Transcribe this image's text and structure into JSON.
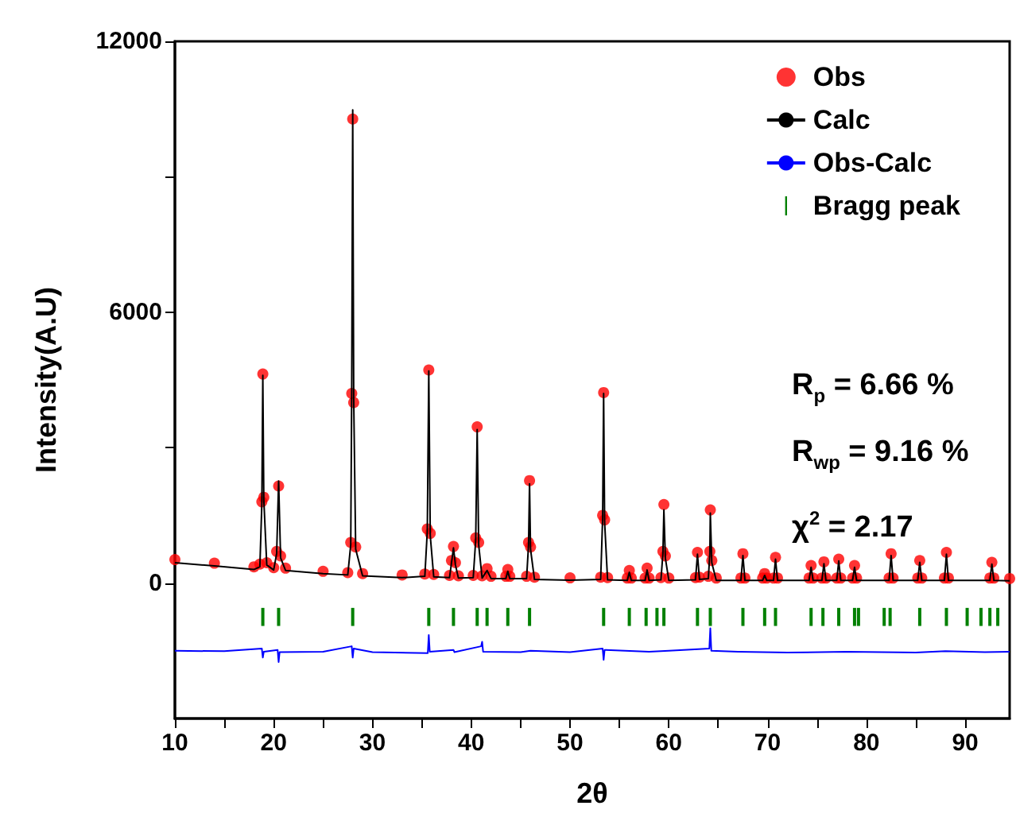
{
  "chart_data": {
    "type": "scatter",
    "xlabel": "2θ",
    "ylabel": "Intensity(A.U)",
    "xlim": [
      10,
      94.5
    ],
    "xticks": [
      10,
      {
        "value": 15,
        "label": null
      },
      20,
      {
        "value": 25,
        "label": null
      },
      30,
      {
        "value": 35,
        "label": null
      },
      40,
      {
        "value": 45,
        "label": null
      },
      50,
      {
        "value": 55,
        "label": null
      },
      60,
      {
        "value": 65,
        "label": null
      },
      70,
      {
        "value": 75,
        "label": null
      },
      80,
      {
        "value": 85,
        "label": null
      },
      90
    ],
    "ylim": [
      -3000,
      12000
    ],
    "yticks": [
      0,
      {
        "value": 3000,
        "label": null
      },
      6000,
      {
        "value": 9000,
        "label": null
      },
      12000
    ],
    "legend": "top right",
    "grid": false,
    "annotations": [
      "R$_{p}$ = 6.66 %",
      "R$_{wp}$ = 9.16 %",
      "χ$^{2}$ =  2.17"
    ],
    "series": [
      {
        "name": "Obs",
        "marker": "circle",
        "color": "#ff0000",
        "x": [
          10,
          14,
          18,
          18.6,
          18.8,
          18.9,
          19.0,
          19.3,
          20.0,
          20.3,
          20.5,
          20.7,
          21.2,
          25,
          27.5,
          27.8,
          27.9,
          28.0,
          28.1,
          28.3,
          29,
          33,
          35.3,
          35.55,
          35.7,
          35.85,
          36.2,
          37.8,
          38.0,
          38.2,
          38.4,
          38.7,
          40.2,
          40.45,
          40.6,
          40.75,
          41.1,
          41.6,
          42.0,
          43.5,
          43.7,
          43.9,
          45.6,
          45.8,
          45.9,
          46.0,
          46.4,
          50,
          53.1,
          53.3,
          53.4,
          53.5,
          53.8,
          55.8,
          56.0,
          56.2,
          57.6,
          57.8,
          58.0,
          59.2,
          59.4,
          59.5,
          59.65,
          60.0,
          62.7,
          62.9,
          63.1,
          64.0,
          64.15,
          64.2,
          64.35,
          64.8,
          67.3,
          67.5,
          67.7,
          69.5,
          69.7,
          69.9,
          70.6,
          70.8,
          71.0,
          74.2,
          74.4,
          74.6,
          75.5,
          75.7,
          75.9,
          77.0,
          77.2,
          77.4,
          78.6,
          78.8,
          79.0,
          82.3,
          82.5,
          82.7,
          85.2,
          85.4,
          85.6,
          87.9,
          88.1,
          88.3,
          92.5,
          92.7,
          92.9,
          94.5
        ],
        "values": [
          520,
          440,
          360,
          420,
          1800,
          4630,
          1900,
          450,
          340,
          700,
          2150,
          600,
          330,
          260,
          230,
          900,
          4200,
          10280,
          4000,
          800,
          210,
          180,
          200,
          1200,
          4720,
          1100,
          190,
          170,
          500,
          810,
          450,
          160,
          170,
          1000,
          3460,
          900,
          160,
          320,
          150,
          150,
          300,
          150,
          150,
          900,
          2270,
          800,
          130,
          115,
          130,
          1500,
          4220,
          1400,
          120,
          110,
          280,
          110,
          110,
          330,
          110,
          120,
          700,
          1740,
          600,
          110,
          120,
          680,
          130,
          150,
          700,
          1620,
          500,
          110,
          110,
          650,
          110,
          110,
          210,
          110,
          110,
          570,
          110,
          110,
          390,
          110,
          110,
          470,
          110,
          110,
          530,
          110,
          110,
          390,
          110,
          110,
          650,
          110,
          110,
          500,
          110,
          110,
          680,
          110,
          110,
          460,
          110,
          100
        ]
      },
      {
        "name": "Calc",
        "type": "line",
        "color": "#000000",
        "x": [
          10,
          14,
          18,
          18.6,
          18.8,
          18.9,
          19.0,
          19.3,
          20.0,
          20.3,
          20.5,
          20.7,
          21.2,
          25,
          27.5,
          27.8,
          27.9,
          28.0,
          28.1,
          28.3,
          29,
          33,
          35.3,
          35.55,
          35.7,
          35.85,
          36.2,
          37.8,
          38.0,
          38.2,
          38.4,
          38.7,
          40.2,
          40.45,
          40.6,
          40.75,
          41.1,
          41.6,
          42.0,
          43.5,
          43.7,
          43.9,
          45.6,
          45.8,
          45.9,
          46.0,
          46.4,
          50,
          53.1,
          53.3,
          53.4,
          53.5,
          53.8,
          55.8,
          56.0,
          56.2,
          57.6,
          57.8,
          58.0,
          59.2,
          59.4,
          59.5,
          59.65,
          60.0,
          62.7,
          62.9,
          63.1,
          64.0,
          64.15,
          64.2,
          64.35,
          64.8,
          67.3,
          67.5,
          67.7,
          69.5,
          69.7,
          69.9,
          70.6,
          70.8,
          71.0,
          74.2,
          74.4,
          74.6,
          75.5,
          75.7,
          75.9,
          77.0,
          77.2,
          77.4,
          78.6,
          78.8,
          79.0,
          82.3,
          82.5,
          82.7,
          85.2,
          85.4,
          85.6,
          87.9,
          88.1,
          88.3,
          92.5,
          92.7,
          92.9,
          94.5
        ],
        "values": [
          450,
          380,
          300,
          360,
          1750,
          4600,
          1850,
          400,
          290,
          650,
          2260,
          560,
          280,
          210,
          180,
          850,
          4300,
          10480,
          4100,
          750,
          160,
          120,
          150,
          1150,
          4700,
          1050,
          140,
          120,
          450,
          780,
          400,
          110,
          120,
          950,
          3400,
          850,
          110,
          280,
          100,
          100,
          260,
          100,
          100,
          850,
          2200,
          750,
          80,
          65,
          80,
          1450,
          4200,
          1350,
          70,
          60,
          240,
          60,
          60,
          290,
          60,
          70,
          650,
          1620,
          550,
          60,
          70,
          640,
          80,
          100,
          650,
          1550,
          450,
          60,
          60,
          610,
          60,
          60,
          170,
          60,
          60,
          530,
          60,
          60,
          350,
          60,
          60,
          430,
          60,
          60,
          490,
          60,
          60,
          350,
          60,
          60,
          610,
          60,
          60,
          460,
          60,
          60,
          640,
          60,
          60,
          420,
          60,
          50
        ]
      },
      {
        "name": "Obs-Calc",
        "type": "line",
        "color": "#0000ff",
        "x": [
          10,
          15,
          18.8,
          18.9,
          19.0,
          20.4,
          20.5,
          20.6,
          25,
          27.9,
          28.0,
          28.1,
          30,
          35.6,
          35.7,
          35.8,
          38.2,
          38.3,
          41.0,
          41.1,
          41.2,
          45,
          46.0,
          50,
          53.3,
          53.4,
          53.5,
          58,
          60,
          64.1,
          64.2,
          64.3,
          67,
          72,
          78,
          85,
          88,
          92,
          94.5
        ],
        "values": [
          -1500,
          -1510,
          -1450,
          -1650,
          -1520,
          -1480,
          -1750,
          -1530,
          -1520,
          -1400,
          -1650,
          -1450,
          -1530,
          -1550,
          -1150,
          -1520,
          -1480,
          -1530,
          -1400,
          -1300,
          -1520,
          -1530,
          -1500,
          -1530,
          -1450,
          -1700,
          -1480,
          -1520,
          -1500,
          -1450,
          -1000,
          -1500,
          -1520,
          -1540,
          -1520,
          -1540,
          -1510,
          -1530,
          -1520
        ]
      },
      {
        "name": "Bragg peak",
        "type": "bar",
        "color": "#008000",
        "base": [
          -950,
          -950,
          -950,
          -950,
          -950,
          -950,
          -950,
          -950,
          -950,
          -950,
          -950,
          -950,
          -950,
          -950,
          -950,
          -950,
          -950,
          -950,
          -950,
          -950,
          -950,
          -950,
          -950,
          -950,
          -950,
          -950,
          -950,
          -950,
          -950,
          -950,
          -950,
          -950
        ],
        "x": [
          18.9,
          20.5,
          28.0,
          35.7,
          38.2,
          40.6,
          41.6,
          43.7,
          45.9,
          53.4,
          56.0,
          57.7,
          58.8,
          59.5,
          62.9,
          64.2,
          67.5,
          69.7,
          70.8,
          74.4,
          75.6,
          77.2,
          78.8,
          79.2,
          81.8,
          82.4,
          85.4,
          88.1,
          90.2,
          91.6,
          92.5,
          93.3
        ],
        "values": [
          400,
          400,
          400,
          400,
          400,
          400,
          400,
          400,
          400,
          400,
          400,
          400,
          400,
          400,
          400,
          400,
          400,
          400,
          400,
          400,
          400,
          400,
          400,
          400,
          400,
          400,
          400,
          400,
          400,
          400,
          400,
          400
        ]
      }
    ]
  }
}
